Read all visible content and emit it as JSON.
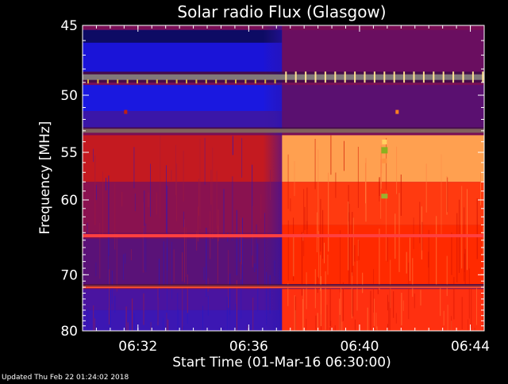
{
  "chart_data": {
    "type": "heatmap",
    "title": "Solar radio Flux (Glasgow)",
    "xlabel": "Start Time (01-Mar-16 06:30:00)",
    "ylabel": "Frequency [MHz]",
    "footer": "Updated Thu Feb 22 01:24:02 2018",
    "x_ticks": [
      {
        "label": "06:32",
        "minutes": 2
      },
      {
        "label": "06:36",
        "minutes": 6
      },
      {
        "label": "06:40",
        "minutes": 10
      },
      {
        "label": "06:44",
        "minutes": 14
      }
    ],
    "y_ticks": [
      45,
      50,
      55,
      60,
      70,
      80
    ],
    "x_range_minutes": [
      0,
      14.5
    ],
    "y_range_mhz": [
      45,
      80
    ],
    "y_scale": "reciprocal",
    "burst_onset_minutes": 7.2,
    "bright_lanes_mhz": [
      {
        "freq": 48.6,
        "color": "#ffffc0"
      },
      {
        "freq": 53.0,
        "color": "#ffcc80"
      },
      {
        "freq": 64.4,
        "color": "#ff4040"
      },
      {
        "freq": 71.9,
        "color": "#ff5030"
      }
    ],
    "colors": {
      "low_intensity": "#1a14d8",
      "mid_intensity": "#5a1078",
      "high_intensity": "#ff2a00",
      "peak_intensity": "#ffb060"
    }
  }
}
